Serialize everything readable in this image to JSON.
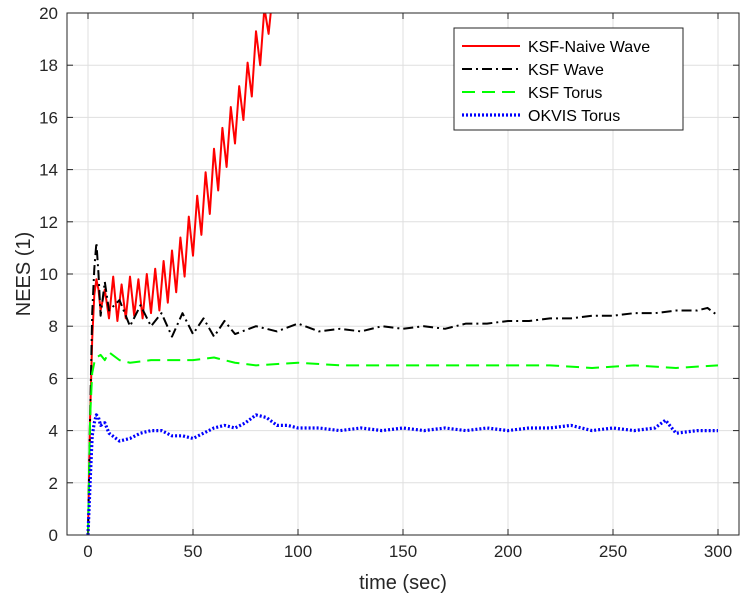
{
  "chart_data": {
    "type": "line",
    "title": "",
    "xlabel": "time (sec)",
    "ylabel": "NEES (1)",
    "xlim": [
      -10,
      310
    ],
    "ylim": [
      0,
      20
    ],
    "xticks": [
      0,
      50,
      100,
      150,
      200,
      250,
      300
    ],
    "yticks": [
      0,
      2,
      4,
      6,
      8,
      10,
      12,
      14,
      16,
      18,
      20
    ],
    "grid": true,
    "legend_position": "top-right",
    "series": [
      {
        "name": "KSF-Naive Wave",
        "color": "#ff0000",
        "style": "solid",
        "x": [
          0,
          1,
          2,
          3,
          4,
          5,
          6,
          8,
          10,
          12,
          14,
          16,
          18,
          20,
          22,
          24,
          26,
          28,
          30,
          32,
          34,
          36,
          38,
          40,
          42,
          44,
          46,
          48,
          50,
          52,
          54,
          56,
          58,
          60,
          62,
          64,
          66,
          68,
          70,
          72,
          74,
          76,
          78,
          80,
          82,
          84,
          86,
          87
        ],
        "y": [
          0,
          4.5,
          7.5,
          9.2,
          9.8,
          9.4,
          8.6,
          9.4,
          8.3,
          9.9,
          8.2,
          9.6,
          8.3,
          9.9,
          8.4,
          9.8,
          8.3,
          10.0,
          8.5,
          10.2,
          8.6,
          10.5,
          8.9,
          10.9,
          9.3,
          11.4,
          9.9,
          12.2,
          10.7,
          13.0,
          11.5,
          13.9,
          12.3,
          14.8,
          13.2,
          15.6,
          14.1,
          16.4,
          15.0,
          17.2,
          15.9,
          18.1,
          16.8,
          19.3,
          18.0,
          20.2,
          19.2,
          20.0
        ]
      },
      {
        "name": "KSF Wave",
        "color": "#000000",
        "style": "dashdot",
        "x": [
          0,
          1,
          2,
          3,
          4,
          5,
          6,
          8,
          10,
          15,
          20,
          25,
          30,
          35,
          40,
          45,
          50,
          55,
          60,
          65,
          70,
          80,
          90,
          100,
          110,
          120,
          130,
          140,
          150,
          160,
          170,
          180,
          190,
          200,
          210,
          220,
          230,
          240,
          250,
          260,
          270,
          280,
          290,
          295,
          300
        ],
        "y": [
          0,
          4.5,
          8.5,
          10.2,
          11.2,
          10.0,
          8.4,
          9.7,
          8.6,
          9.0,
          8.0,
          8.8,
          8.0,
          8.5,
          7.6,
          8.5,
          7.7,
          8.3,
          7.6,
          8.2,
          7.7,
          8.0,
          7.8,
          8.1,
          7.8,
          7.9,
          7.8,
          8.0,
          7.9,
          8.0,
          7.9,
          8.1,
          8.1,
          8.2,
          8.2,
          8.3,
          8.3,
          8.4,
          8.4,
          8.5,
          8.5,
          8.6,
          8.6,
          8.7,
          8.4
        ]
      },
      {
        "name": "KSF Torus",
        "color": "#00ff00",
        "style": "dashed",
        "x": [
          0,
          1,
          2,
          3,
          4,
          6,
          8,
          10,
          15,
          20,
          30,
          40,
          50,
          60,
          70,
          80,
          100,
          120,
          140,
          160,
          180,
          200,
          220,
          240,
          260,
          280,
          300
        ],
        "y": [
          0,
          4.5,
          6.2,
          6.6,
          6.8,
          6.9,
          6.7,
          7.0,
          6.7,
          6.6,
          6.7,
          6.7,
          6.7,
          6.8,
          6.6,
          6.5,
          6.6,
          6.5,
          6.5,
          6.5,
          6.5,
          6.5,
          6.5,
          6.4,
          6.5,
          6.4,
          6.5
        ]
      },
      {
        "name": "OKVIS Torus",
        "color": "#0000ff",
        "style": "dotted",
        "x": [
          0,
          1,
          2,
          3,
          4,
          5,
          6,
          8,
          10,
          15,
          20,
          25,
          30,
          35,
          40,
          45,
          50,
          55,
          60,
          65,
          70,
          75,
          80,
          85,
          90,
          95,
          100,
          110,
          120,
          130,
          140,
          150,
          160,
          170,
          180,
          190,
          200,
          210,
          220,
          230,
          240,
          250,
          260,
          270,
          275,
          280,
          290,
          300
        ],
        "y": [
          0,
          2.0,
          3.8,
          4.3,
          4.6,
          4.5,
          4.2,
          4.3,
          3.9,
          3.6,
          3.7,
          3.9,
          4.0,
          4.0,
          3.8,
          3.8,
          3.7,
          3.9,
          4.1,
          4.2,
          4.1,
          4.3,
          4.6,
          4.5,
          4.2,
          4.2,
          4.1,
          4.1,
          4.0,
          4.1,
          4.0,
          4.1,
          4.0,
          4.1,
          4.0,
          4.1,
          4.0,
          4.1,
          4.1,
          4.2,
          4.0,
          4.1,
          4.0,
          4.1,
          4.4,
          3.9,
          4.0,
          4.0
        ]
      }
    ]
  }
}
